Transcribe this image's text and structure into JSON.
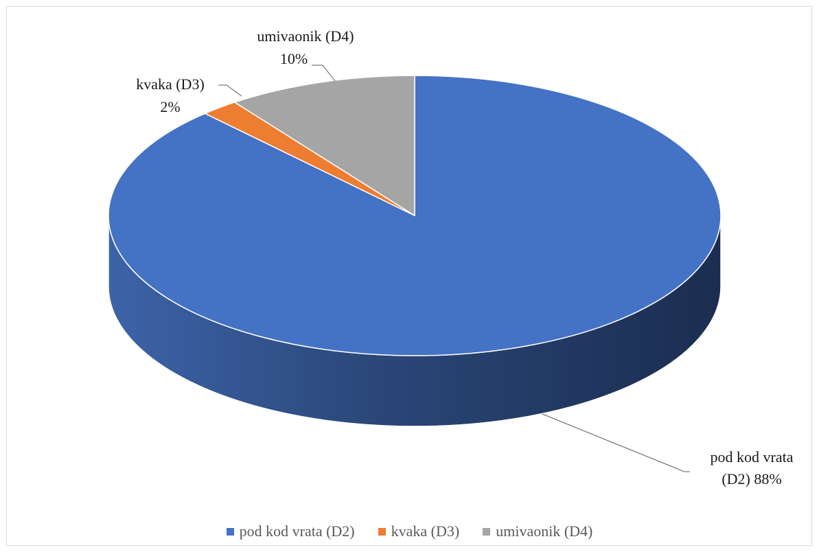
{
  "chart_data": {
    "type": "pie",
    "title": "",
    "categories": [
      "pod kod vrata (D2)",
      "kvaka (D3)",
      "umivaonik (D4)"
    ],
    "values": [
      88,
      2,
      10
    ],
    "unit": "%",
    "data_labels": {
      "d2": {
        "name": "pod kod vrata",
        "rest": "(D2) 88%"
      },
      "d3": {
        "name": "kvaka (D3)",
        "pct": "2%"
      },
      "d4": {
        "name": "umivaonik (D4)",
        "pct": "10%"
      }
    },
    "legend": {
      "position": "bottom",
      "items": [
        {
          "label": "pod kod vrata (D2)",
          "color": "#4472c4"
        },
        {
          "label": "kvaka (D3)",
          "color": "#ed7d31"
        },
        {
          "label": "umivaonik (D4)",
          "color": "#a5a5a5"
        }
      ]
    },
    "colors": [
      "#4472c4",
      "#ed7d31",
      "#a5a5a5"
    ],
    "style": "3d"
  }
}
